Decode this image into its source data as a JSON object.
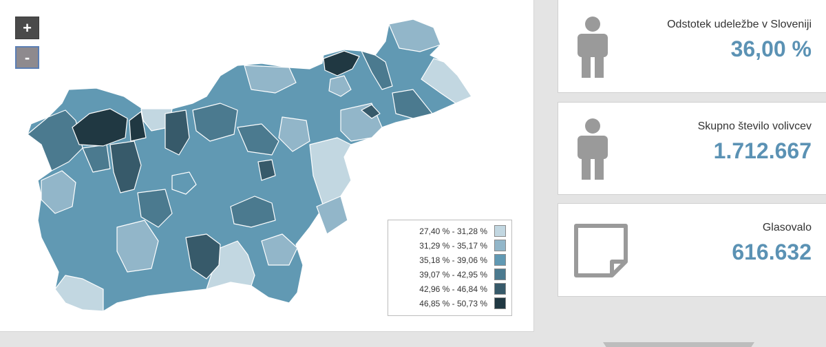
{
  "map": {
    "zoom_in_label": "+",
    "zoom_out_label": "-",
    "legend": [
      {
        "label": "27,40 % - 31,28 %",
        "color": "#c2d7e1"
      },
      {
        "label": "31,29 % - 35,17 %",
        "color": "#92b6c9"
      },
      {
        "label": "35,18 % - 39,06 %",
        "color": "#6199b3"
      },
      {
        "label": "39,07 % - 42,95 %",
        "color": "#4b7a8f"
      },
      {
        "label": "42,96 % - 46,84 %",
        "color": "#375a6a"
      },
      {
        "label": "46,85 % - 50,73 %",
        "color": "#203842"
      }
    ]
  },
  "stats": [
    {
      "title": "Odstotek udeležbe v Sloveniji",
      "value": "36,00 %",
      "icon": "person-icon"
    },
    {
      "title": "Skupno število volivcev",
      "value": "1.712.667",
      "icon": "person-icon"
    },
    {
      "title": "Glasovalo",
      "value": "616.632",
      "icon": "ballot-note-icon"
    }
  ]
}
